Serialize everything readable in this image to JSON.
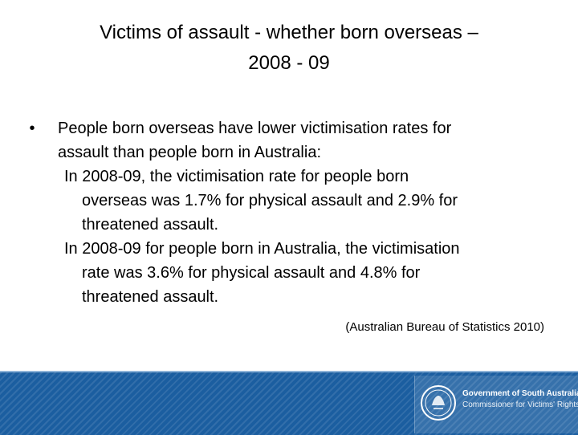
{
  "slide": {
    "title_line1": "Victims of assault - whether born overseas –",
    "title_line2": "2008 - 09",
    "bullet": {
      "line1": "People born overseas have lower victimisation rates for",
      "line2": "assault than people born in Australia:"
    },
    "points": [
      {
        "line1": "In 2008-09, the victimisation rate for people born",
        "line2": "overseas was 1.7% for physical assault and 2.9% for",
        "line3": "threatened assault."
      },
      {
        "line1": "In 2008-09 for people born in Australia, the victimisation",
        "line2": "rate was 3.6% for physical assault and 4.8% for",
        "line3": "threatened assault."
      }
    ],
    "citation": "(Australian Bureau of Statistics 2010)"
  },
  "footer": {
    "logo_line1": "Government of South Australia",
    "logo_line2": "Commissioner for Victims' Rights",
    "logo_icon": "sa-government-seal-icon"
  },
  "colors": {
    "footer_blue": "#1b5ea0",
    "text": "#000000"
  }
}
